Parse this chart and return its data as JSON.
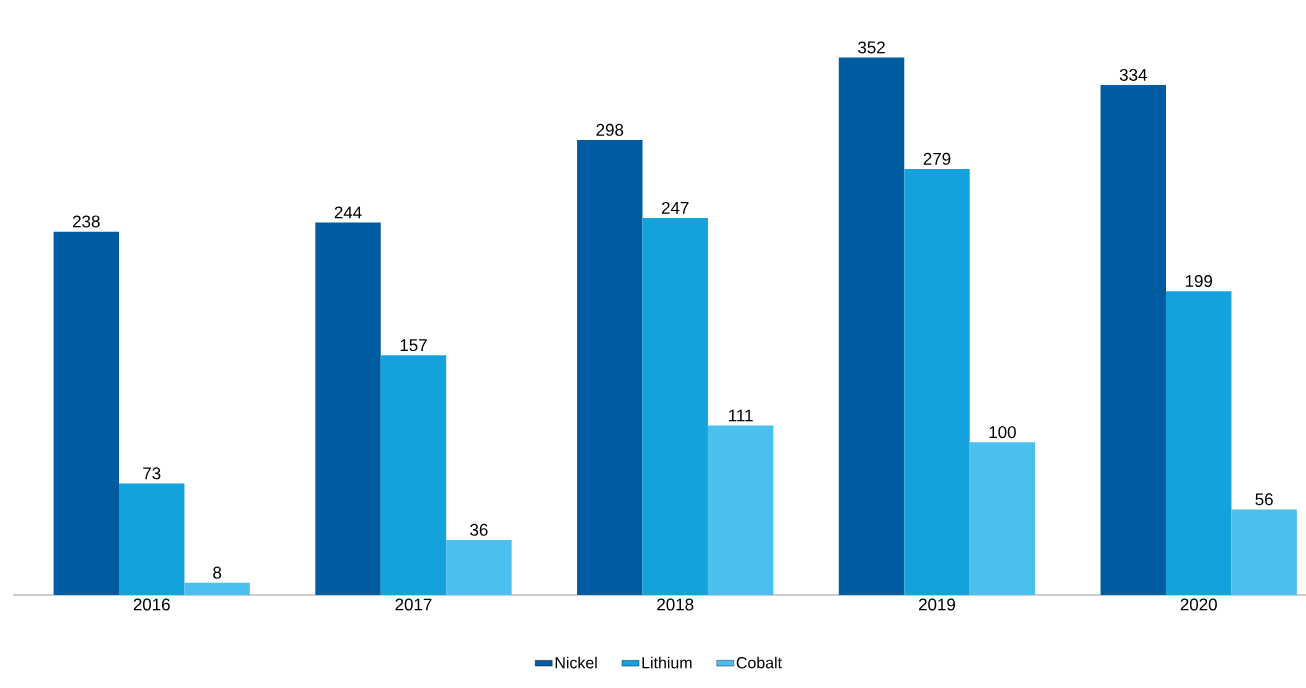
{
  "chart_data": {
    "type": "bar",
    "categories": [
      "2016",
      "2017",
      "2018",
      "2019",
      "2020"
    ],
    "series": [
      {
        "name": "Nickel",
        "color": "#005ca1",
        "values": [
          238,
          244,
          298,
          352,
          334
        ]
      },
      {
        "name": "Lithium",
        "color": "#13a2dc",
        "values": [
          73,
          157,
          247,
          279,
          199
        ]
      },
      {
        "name": "Cobalt",
        "color": "#4bc0ee",
        "values": [
          8,
          36,
          111,
          100,
          56
        ]
      }
    ],
    "data_labels": true,
    "legend": "bottom",
    "grid": false
  }
}
